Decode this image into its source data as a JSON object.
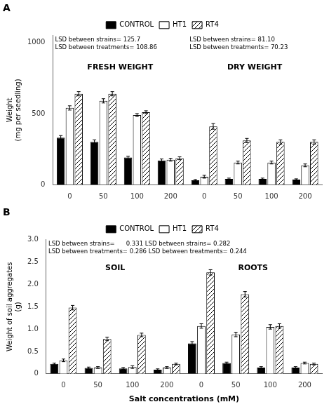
{
  "chart_data": [
    {
      "type": "bar",
      "title": "A",
      "ylabel": "Weight\n(mg per seedling)",
      "categories": [
        "0",
        "50",
        "100",
        "200",
        "0",
        "50",
        "100",
        "200"
      ],
      "series": [
        {
          "name": "CONTROL",
          "color": "#000000",
          "values": [
            330,
            300,
            190,
            170,
            30,
            40,
            40,
            35
          ],
          "errors": [
            15,
            15,
            10,
            10,
            5,
            5,
            5,
            5
          ]
        },
        {
          "name": "HT1",
          "color": "#ffffff",
          "values": [
            540,
            590,
            490,
            175,
            55,
            155,
            155,
            135
          ],
          "errors": [
            15,
            15,
            10,
            10,
            10,
            10,
            10,
            10
          ]
        },
        {
          "name": "RT4",
          "color": "#ffffff",
          "values": [
            640,
            640,
            510,
            185,
            410,
            310,
            300,
            300
          ],
          "errors": [
            15,
            15,
            10,
            10,
            20,
            15,
            15,
            15
          ]
        }
      ],
      "ylim": [
        0,
        1050
      ],
      "yticks": [
        0,
        500,
        1000
      ],
      "grid": false,
      "legend": "top",
      "group_labels": [
        "FRESH WEIGHT",
        "DRY WEIGHT"
      ],
      "annotations": [
        {
          "text": "LSD between strains= 125.7\nLSD between treatments= 108.86"
        },
        {
          "text": "LSD between strains= 81.10\nLSD between treatments= 70.23"
        }
      ]
    },
    {
      "type": "bar",
      "title": "B",
      "ylabel": "Weight of soil aggregates\n(g)",
      "xlabel": "Salt concentrations (mM)",
      "categories": [
        "0",
        "50",
        "100",
        "200",
        "0",
        "50",
        "100",
        "200"
      ],
      "series": [
        {
          "name": "CONTROL",
          "color": "#000000",
          "values": [
            0.22,
            0.13,
            0.12,
            0.09,
            0.68,
            0.24,
            0.14,
            0.14
          ],
          "errors": [
            0.02,
            0.02,
            0.02,
            0.02,
            0.04,
            0.02,
            0.02,
            0.02
          ]
        },
        {
          "name": "HT1",
          "color": "#ffffff",
          "values": [
            0.3,
            0.14,
            0.15,
            0.14,
            1.07,
            0.88,
            1.05,
            0.24
          ],
          "errors": [
            0.03,
            0.02,
            0.03,
            0.02,
            0.05,
            0.05,
            0.05,
            0.02
          ]
        },
        {
          "name": "RT4",
          "color": "#ffffff",
          "values": [
            1.48,
            0.78,
            0.87,
            0.22,
            2.27,
            1.78,
            1.07,
            0.22
          ],
          "errors": [
            0.05,
            0.04,
            0.04,
            0.02,
            0.06,
            0.06,
            0.05,
            0.02
          ]
        }
      ],
      "ylim": [
        0,
        3.0
      ],
      "yticks": [
        0,
        0.5,
        {
          "value": 1.0,
          "label": "1.0"
        },
        1.5,
        {
          "value": 2.0,
          "label": "2.0"
        },
        2.5,
        {
          "value": 3.0,
          "label": "3.0"
        }
      ],
      "grid": false,
      "legend": "top",
      "group_labels": [
        "SOIL",
        "ROOTS"
      ],
      "annotations": [
        {
          "text": "LSD between strains=      0.331 LSD between strains= 0.282\nLSD between treatments= 0.286 LSD between treatments= 0.244"
        }
      ]
    }
  ]
}
